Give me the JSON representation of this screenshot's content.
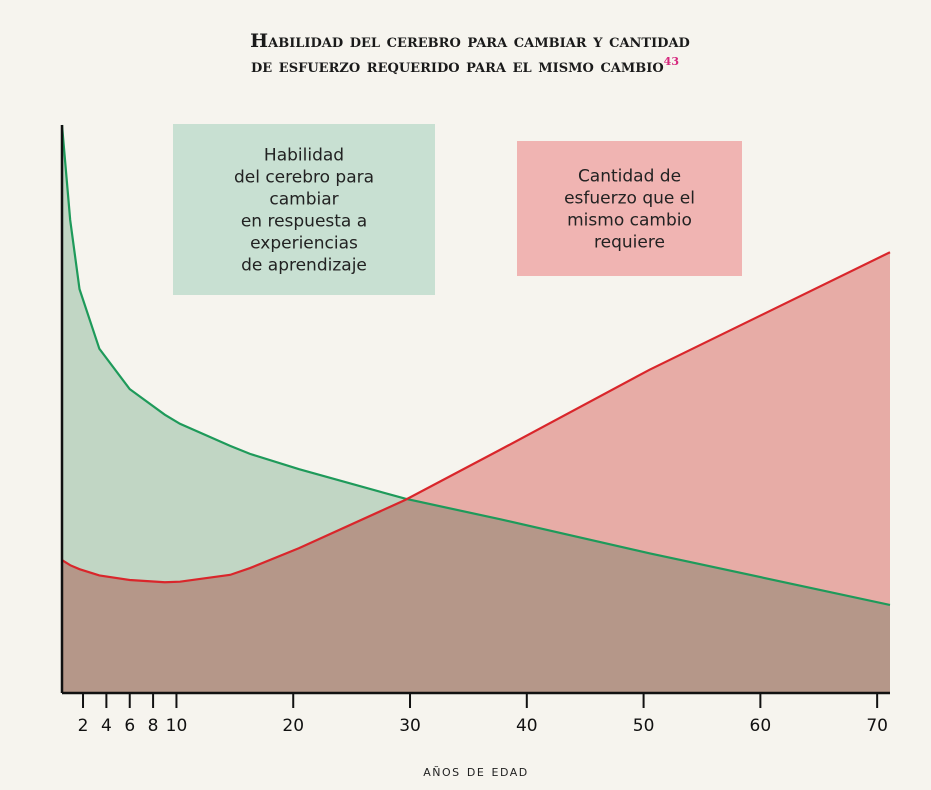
{
  "chart_data": {
    "type": "area",
    "title_lines": [
      "Habilidad del cerebro para cambiar y cantidad",
      "de esfuerzo requerido para el mismo cambio"
    ],
    "title_note": "43",
    "x_label": "años de edad",
    "x": [
      0.2,
      0.9,
      1.7,
      3.4,
      6,
      9,
      10.3,
      14.6,
      16.3,
      20.5,
      29.6,
      37.7,
      50.5,
      71.1
    ],
    "series": [
      {
        "label_lines": [
          "Habilidad",
          "del cerebro para",
          "cambiar",
          "en respuesta a",
          "experiencias",
          "de aprendizaje"
        ],
        "color": "#1e9a5a",
        "fill": "#c8e0d2",
        "values": [
          100,
          83.3,
          71.1,
          60.6,
          53.5,
          49,
          47.4,
          43.5,
          42.1,
          39.4,
          34.2,
          30.6,
          24.6,
          15.5
        ]
      },
      {
        "label_lines": [
          "Cantidad de",
          "esfuerzo que el",
          "mismo cambio",
          "requiere"
        ],
        "color": "#d9262b",
        "fill": "#f0b4b2",
        "values": [
          23.4,
          22.5,
          21.8,
          20.7,
          19.9,
          19.5,
          19.6,
          20.8,
          22,
          25.5,
          34,
          42.8,
          56.9,
          77.6
        ]
      }
    ],
    "xlim": [
      0.2,
      71.1
    ],
    "xticks": [
      2,
      4,
      6,
      8,
      10,
      20,
      30,
      40,
      50,
      60,
      70
    ],
    "ylim": [
      0,
      100
    ]
  }
}
